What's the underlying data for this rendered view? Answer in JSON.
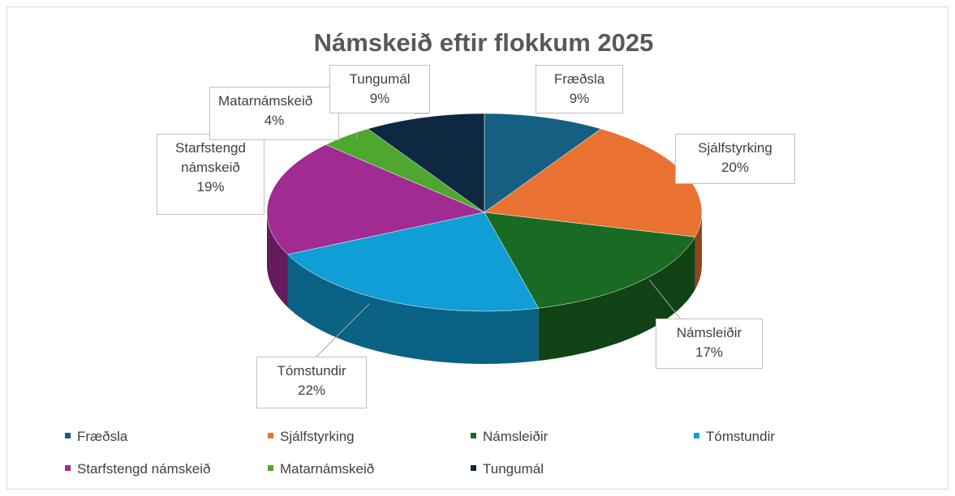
{
  "chart_data": {
    "type": "pie",
    "title": "Námskeið eftir flokkum 2025",
    "categories": [
      "Fræðsla",
      "Sjálfstyrking",
      "Námsleiðir",
      "Tómstundir",
      "Starfstengd námskeið",
      "Matarnámskeið",
      "Tungumál"
    ],
    "values": [
      9,
      20,
      17,
      22,
      19,
      4,
      9
    ],
    "value_labels": [
      "9%",
      "20%",
      "17%",
      "22%",
      "19%",
      "4%",
      "9%"
    ],
    "colors": [
      "#156082",
      "#e97132",
      "#196b24",
      "#0f9ed5",
      "#a02b93",
      "#4ea72e",
      "#0e2841"
    ],
    "legend": "bottom"
  }
}
